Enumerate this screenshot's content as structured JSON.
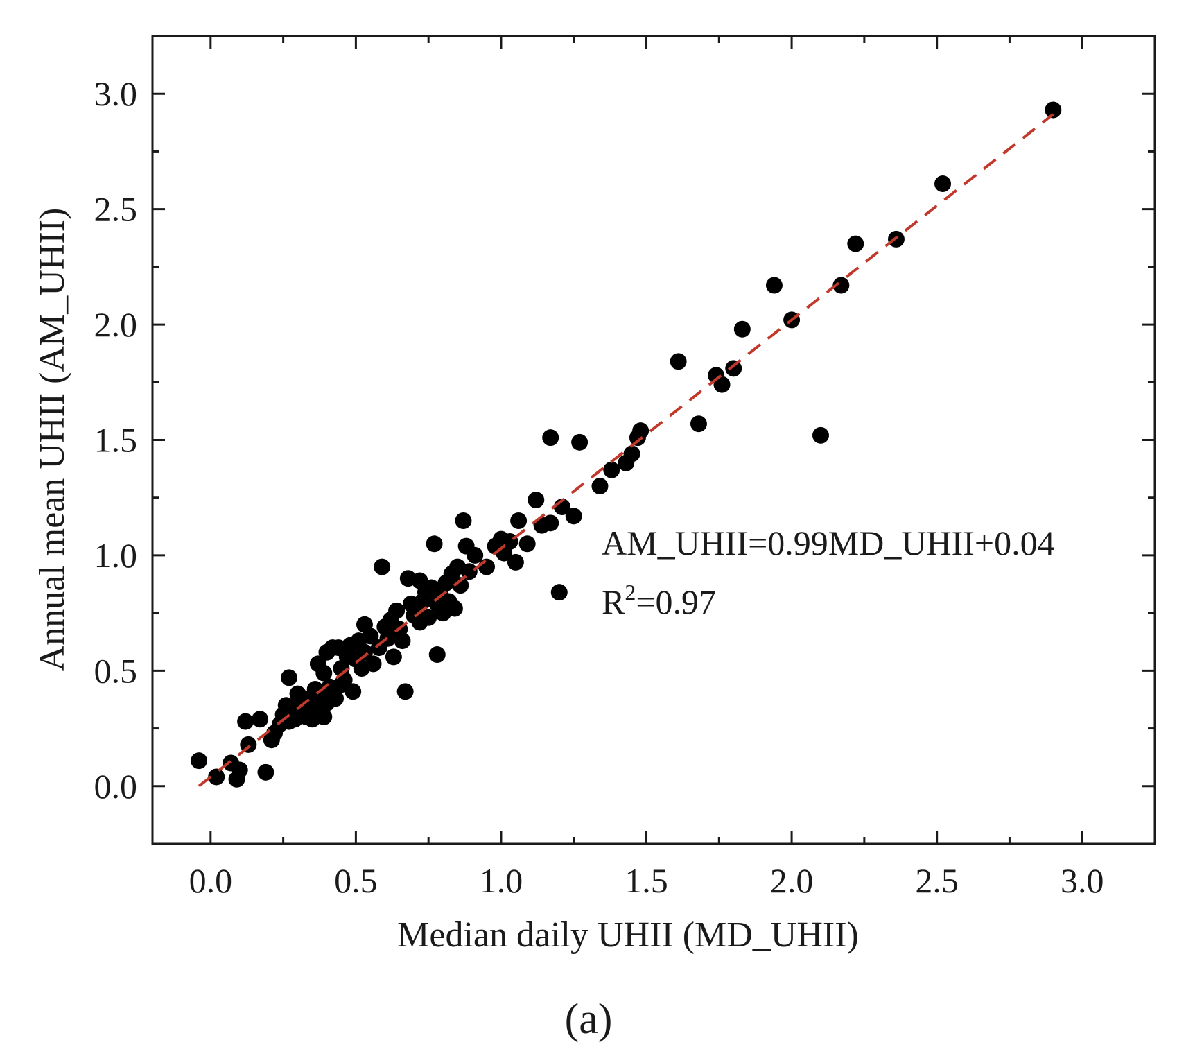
{
  "chart_data": {
    "type": "scatter",
    "panel_label": "(a)",
    "xlabel": "Median daily UHII (MD_UHII)",
    "ylabel": "Annual mean UHII (AM_UHII)",
    "xlim": [
      -0.2,
      3.25
    ],
    "ylim": [
      -0.25,
      3.25
    ],
    "xticks": [
      "0.0",
      "0.5",
      "1.0",
      "1.5",
      "2.0",
      "2.5",
      "3.0"
    ],
    "yticks": [
      "0.0",
      "0.5",
      "1.0",
      "1.5",
      "2.0",
      "2.5",
      "3.0"
    ],
    "grid": false,
    "marker_color": "#000000",
    "fit_color": "#c0392b",
    "annotation": {
      "equation": "AM_UHII=0.99MD_UHII+0.04",
      "r2_prefix": "R",
      "r2_sup": "2",
      "r2_value": "=0.97"
    },
    "fit_line": {
      "slope": 0.99,
      "intercept": 0.04,
      "x_range": [
        -0.04,
        2.9
      ]
    },
    "points": [
      [
        -0.04,
        0.11
      ],
      [
        0.02,
        0.04
      ],
      [
        0.07,
        0.1
      ],
      [
        0.09,
        0.03
      ],
      [
        0.1,
        0.07
      ],
      [
        0.12,
        0.28
      ],
      [
        0.13,
        0.18
      ],
      [
        0.17,
        0.29
      ],
      [
        0.19,
        0.06
      ],
      [
        0.21,
        0.2
      ],
      [
        0.22,
        0.23
      ],
      [
        0.24,
        0.27
      ],
      [
        0.25,
        0.31
      ],
      [
        0.26,
        0.35
      ],
      [
        0.27,
        0.28
      ],
      [
        0.27,
        0.47
      ],
      [
        0.28,
        0.33
      ],
      [
        0.29,
        0.29
      ],
      [
        0.3,
        0.36
      ],
      [
        0.3,
        0.4
      ],
      [
        0.31,
        0.32
      ],
      [
        0.32,
        0.38
      ],
      [
        0.33,
        0.3
      ],
      [
        0.33,
        0.34
      ],
      [
        0.34,
        0.36
      ],
      [
        0.35,
        0.29
      ],
      [
        0.35,
        0.32
      ],
      [
        0.36,
        0.42
      ],
      [
        0.37,
        0.35
      ],
      [
        0.37,
        0.53
      ],
      [
        0.38,
        0.32
      ],
      [
        0.38,
        0.38
      ],
      [
        0.39,
        0.3
      ],
      [
        0.39,
        0.49
      ],
      [
        0.4,
        0.58
      ],
      [
        0.4,
        0.36
      ],
      [
        0.41,
        0.43
      ],
      [
        0.42,
        0.6
      ],
      [
        0.43,
        0.38
      ],
      [
        0.44,
        0.6
      ],
      [
        0.45,
        0.44
      ],
      [
        0.45,
        0.51
      ],
      [
        0.46,
        0.46
      ],
      [
        0.47,
        0.56
      ],
      [
        0.48,
        0.61
      ],
      [
        0.49,
        0.41
      ],
      [
        0.5,
        0.55
      ],
      [
        0.51,
        0.63
      ],
      [
        0.52,
        0.51
      ],
      [
        0.53,
        0.58
      ],
      [
        0.53,
        0.7
      ],
      [
        0.55,
        0.65
      ],
      [
        0.56,
        0.53
      ],
      [
        0.58,
        0.6
      ],
      [
        0.59,
        0.95
      ],
      [
        0.6,
        0.69
      ],
      [
        0.61,
        0.64
      ],
      [
        0.62,
        0.72
      ],
      [
        0.63,
        0.56
      ],
      [
        0.64,
        0.76
      ],
      [
        0.65,
        0.68
      ],
      [
        0.66,
        0.63
      ],
      [
        0.67,
        0.41
      ],
      [
        0.68,
        0.9
      ],
      [
        0.69,
        0.79
      ],
      [
        0.7,
        0.74
      ],
      [
        0.71,
        0.77
      ],
      [
        0.72,
        0.71
      ],
      [
        0.72,
        0.89
      ],
      [
        0.73,
        0.8
      ],
      [
        0.74,
        0.84
      ],
      [
        0.75,
        0.73
      ],
      [
        0.76,
        0.86
      ],
      [
        0.77,
        1.05
      ],
      [
        0.78,
        0.79
      ],
      [
        0.78,
        0.57
      ],
      [
        0.79,
        0.83
      ],
      [
        0.8,
        0.75
      ],
      [
        0.81,
        0.88
      ],
      [
        0.82,
        0.8
      ],
      [
        0.83,
        0.92
      ],
      [
        0.84,
        0.77
      ],
      [
        0.85,
        0.95
      ],
      [
        0.86,
        0.87
      ],
      [
        0.87,
        1.15
      ],
      [
        0.88,
        1.04
      ],
      [
        0.89,
        0.93
      ],
      [
        0.91,
        1.0
      ],
      [
        0.95,
        0.95
      ],
      [
        0.98,
        1.04
      ],
      [
        1.0,
        1.07
      ],
      [
        1.01,
        1.01
      ],
      [
        1.03,
        1.06
      ],
      [
        1.05,
        0.97
      ],
      [
        1.06,
        1.15
      ],
      [
        1.09,
        1.05
      ],
      [
        1.12,
        1.24
      ],
      [
        1.14,
        1.13
      ],
      [
        1.17,
        1.14
      ],
      [
        1.17,
        1.51
      ],
      [
        1.2,
        0.84
      ],
      [
        1.21,
        1.21
      ],
      [
        1.25,
        1.17
      ],
      [
        1.27,
        1.49
      ],
      [
        1.34,
        1.3
      ],
      [
        1.38,
        1.37
      ],
      [
        1.43,
        1.4
      ],
      [
        1.45,
        1.44
      ],
      [
        1.47,
        1.51
      ],
      [
        1.48,
        1.54
      ],
      [
        1.61,
        1.84
      ],
      [
        1.68,
        1.57
      ],
      [
        1.74,
        1.78
      ],
      [
        1.76,
        1.74
      ],
      [
        1.8,
        1.81
      ],
      [
        1.83,
        1.98
      ],
      [
        1.94,
        2.17
      ],
      [
        2.0,
        2.02
      ],
      [
        2.1,
        1.52
      ],
      [
        2.17,
        2.17
      ],
      [
        2.22,
        2.35
      ],
      [
        2.36,
        2.37
      ],
      [
        2.52,
        2.61
      ],
      [
        2.9,
        2.93
      ]
    ]
  }
}
